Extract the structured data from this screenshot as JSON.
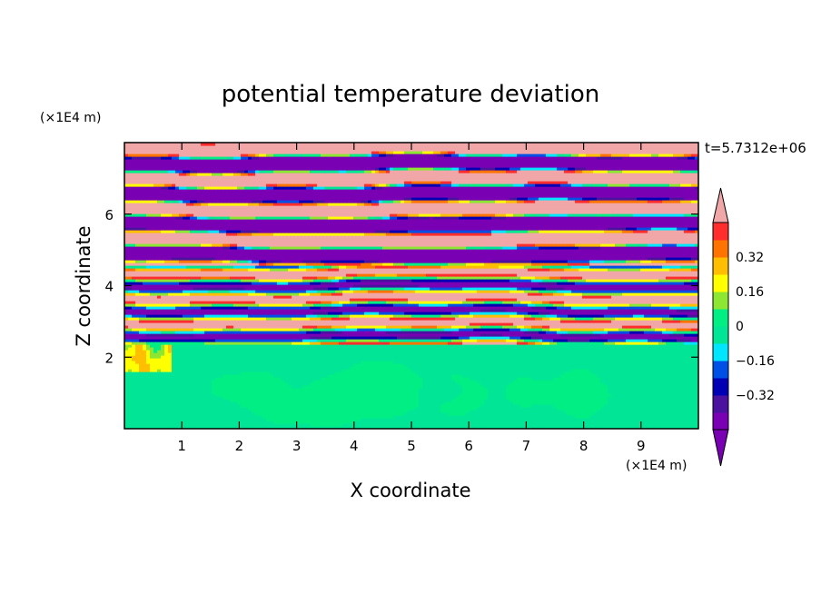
{
  "chart_data": {
    "type": "heatmap",
    "title": "potential temperature deviation",
    "xlabel": "X coordinate",
    "ylabel": "Z coordinate",
    "x_unit": "(×1E4 m)",
    "y_unit": "(×1E4 m)",
    "time_label": "t=5.7312e+06",
    "xlim": [
      0,
      10
    ],
    "ylim": [
      0,
      8
    ],
    "x_ticks": [
      {
        "value": 1,
        "label": "1"
      },
      {
        "value": 2,
        "label": "2"
      },
      {
        "value": 3,
        "label": "3"
      },
      {
        "value": 4,
        "label": "4"
      },
      {
        "value": 5,
        "label": "5"
      },
      {
        "value": 6,
        "label": "6"
      },
      {
        "value": 7,
        "label": "7"
      },
      {
        "value": 8,
        "label": "8"
      },
      {
        "value": 9,
        "label": "9"
      }
    ],
    "y_ticks": [
      {
        "value": 2,
        "label": "2"
      },
      {
        "value": 4,
        "label": "4"
      },
      {
        "value": 6,
        "label": "6"
      }
    ],
    "colorbar": {
      "levels": [
        -0.48,
        -0.4,
        -0.32,
        -0.24,
        -0.16,
        -0.08,
        0,
        0.08,
        0.16,
        0.24,
        0.32,
        0.4,
        0.48
      ],
      "colors": [
        "#7a00b4",
        "#4b12a0",
        "#0000b4",
        "#0050e6",
        "#00e6ff",
        "#00e696",
        "#00ee84",
        "#8ce632",
        "#ffff00",
        "#ffbe00",
        "#ff7300",
        "#ff2d2d",
        "#f1a7a7"
      ],
      "under_color": "#7a00b4",
      "over_color": "#f1a7a7",
      "tick_labels": [
        {
          "value": 0.32,
          "label": "0.32"
        },
        {
          "value": 0.16,
          "label": "0.16"
        },
        {
          "value": 0,
          "label": "0"
        },
        {
          "value": -0.16,
          "label": "−0.16"
        },
        {
          "value": -0.32,
          "label": "−0.32"
        }
      ]
    },
    "regions": {
      "surface_layer": {
        "z_range": [
          0,
          2.4
        ],
        "base_value": -0.04,
        "plume_value": 0.04
      },
      "transition_layer": {
        "z_range": [
          2.4,
          4.6
        ]
      },
      "upper_layer": {
        "z_range": [
          4.6,
          8
        ],
        "pattern": "alternating bands",
        "high_value": 0.5,
        "low_value": -0.5
      }
    }
  }
}
